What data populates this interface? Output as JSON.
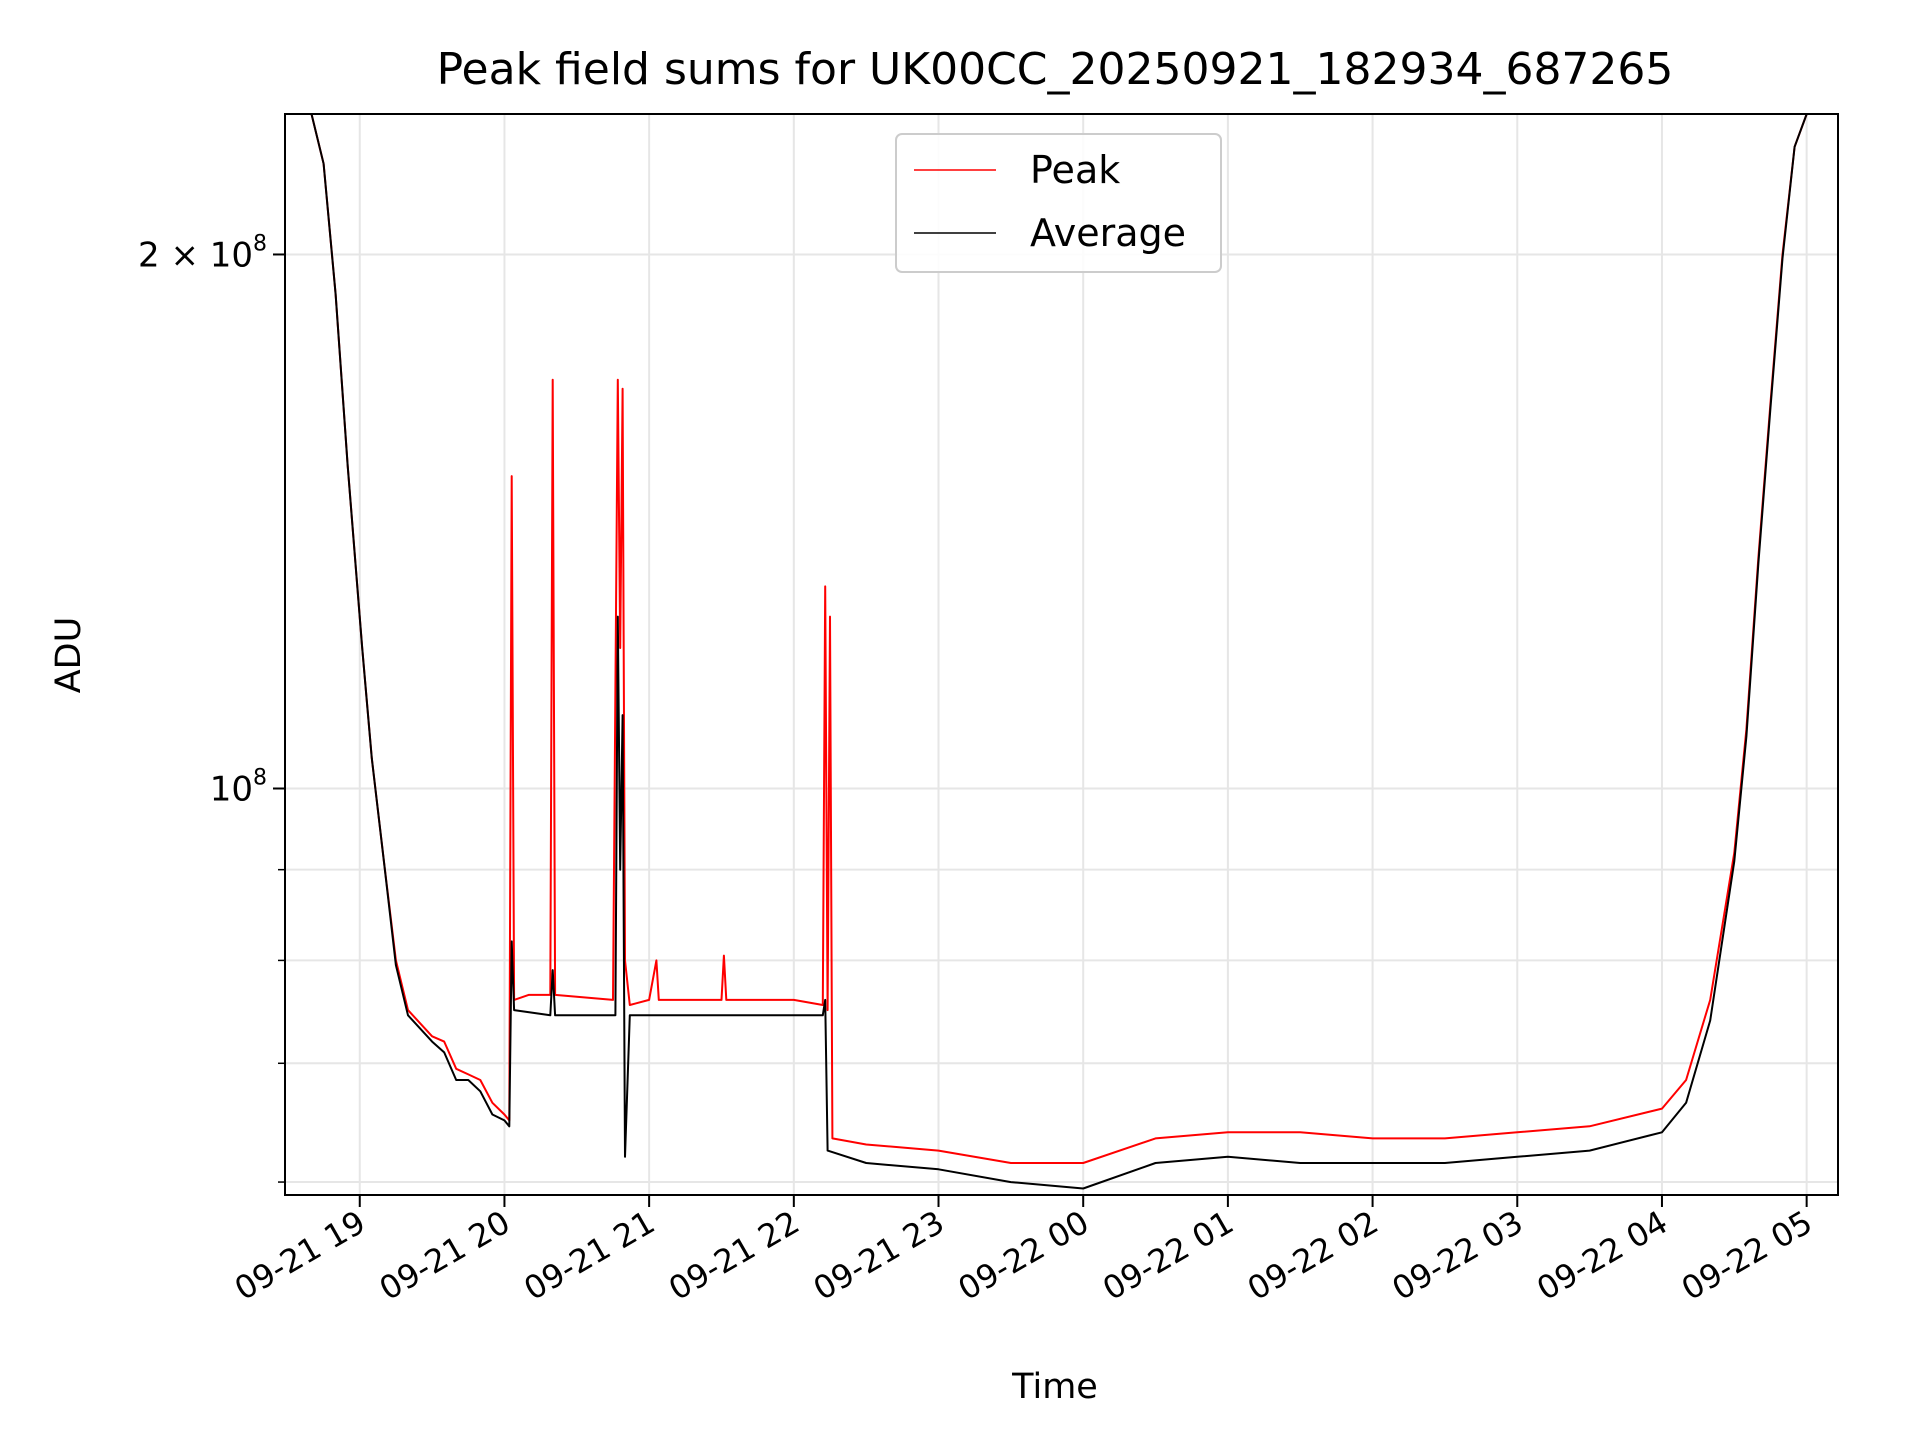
{
  "chart_data": {
    "type": "line",
    "title": "Peak field sums for UK00CC_20250921_182934_687265",
    "xlabel": "Time",
    "ylabel": "ADU",
    "y_scale": "log",
    "ylim": [
      59000000,
      240000000
    ],
    "xlim": [
      "2025-09-21T18:29",
      "2025-09-22T05:13"
    ],
    "grid": true,
    "legend_placement": "upper center",
    "x_ticks": [
      {
        "value": "2025-09-21T19:00",
        "label": "09-21 19"
      },
      {
        "value": "2025-09-21T20:00",
        "label": "09-21 20"
      },
      {
        "value": "2025-09-21T21:00",
        "label": "09-21 21"
      },
      {
        "value": "2025-09-21T22:00",
        "label": "09-21 22"
      },
      {
        "value": "2025-09-21T23:00",
        "label": "09-21 23"
      },
      {
        "value": "2025-09-22T00:00",
        "label": "09-22 00"
      },
      {
        "value": "2025-09-22T01:00",
        "label": "09-22 01"
      },
      {
        "value": "2025-09-22T02:00",
        "label": "09-22 02"
      },
      {
        "value": "2025-09-22T03:00",
        "label": "09-22 03"
      },
      {
        "value": "2025-09-22T04:00",
        "label": "09-22 04"
      },
      {
        "value": "2025-09-22T05:00",
        "label": "09-22 05"
      }
    ],
    "y_major_ticks": [
      {
        "value": 100000000,
        "label_base": "10",
        "label_exp": "8"
      },
      {
        "value": 200000000,
        "label_base": "2 × 10",
        "label_exp": "8"
      }
    ],
    "y_minor_ticks": [
      60000000,
      70000000,
      80000000,
      90000000
    ],
    "series": [
      {
        "name": "Peak",
        "color": "#ff0000",
        "points": [
          [
            "2025-09-21T18:29",
            240000000
          ],
          [
            "2025-09-21T18:40",
            240000000
          ],
          [
            "2025-09-21T18:45",
            225000000
          ],
          [
            "2025-09-21T18:50",
            190000000
          ],
          [
            "2025-09-21T18:55",
            152000000
          ],
          [
            "2025-09-21T19:01",
            120000000
          ],
          [
            "2025-09-21T19:05",
            104000000
          ],
          [
            "2025-09-21T19:10",
            91000000
          ],
          [
            "2025-09-21T19:15",
            80000000
          ],
          [
            "2025-09-21T19:20",
            75000000
          ],
          [
            "2025-09-21T19:30",
            72500000
          ],
          [
            "2025-09-21T19:35",
            72000000
          ],
          [
            "2025-09-21T19:40",
            69500000
          ],
          [
            "2025-09-21T19:45",
            69000000
          ],
          [
            "2025-09-21T19:50",
            68500000
          ],
          [
            "2025-09-21T19:55",
            66500000
          ],
          [
            "2025-09-21T20:00",
            65500000
          ],
          [
            "2025-09-21T20:02",
            65000000
          ],
          [
            "2025-09-21T20:03",
            150000000
          ],
          [
            "2025-09-21T20:04",
            76000000
          ],
          [
            "2025-09-21T20:10",
            76500000
          ],
          [
            "2025-09-21T20:19",
            76500000
          ],
          [
            "2025-09-21T20:20",
            170000000
          ],
          [
            "2025-09-21T20:21",
            76500000
          ],
          [
            "2025-09-21T20:45",
            76000000
          ],
          [
            "2025-09-21T20:47",
            170000000
          ],
          [
            "2025-09-21T20:48",
            120000000
          ],
          [
            "2025-09-21T20:49",
            168000000
          ],
          [
            "2025-09-21T20:50",
            80000000
          ],
          [
            "2025-09-21T20:52",
            75500000
          ],
          [
            "2025-09-21T21:00",
            76000000
          ],
          [
            "2025-09-21T21:03",
            80000000
          ],
          [
            "2025-09-21T21:04",
            76000000
          ],
          [
            "2025-09-21T21:30",
            76000000
          ],
          [
            "2025-09-21T21:31",
            80500000
          ],
          [
            "2025-09-21T21:32",
            76000000
          ],
          [
            "2025-09-21T22:00",
            76000000
          ],
          [
            "2025-09-21T22:12",
            75500000
          ],
          [
            "2025-09-21T22:13",
            130000000
          ],
          [
            "2025-09-21T22:14",
            75000000
          ],
          [
            "2025-09-21T22:15",
            125000000
          ],
          [
            "2025-09-21T22:16",
            63500000
          ],
          [
            "2025-09-21T22:30",
            63000000
          ],
          [
            "2025-09-21T23:00",
            62500000
          ],
          [
            "2025-09-21T23:30",
            61500000
          ],
          [
            "2025-09-22T00:00",
            61500000
          ],
          [
            "2025-09-22T00:30",
            63500000
          ],
          [
            "2025-09-22T01:00",
            64000000
          ],
          [
            "2025-09-22T01:30",
            64000000
          ],
          [
            "2025-09-22T02:00",
            63500000
          ],
          [
            "2025-09-22T02:30",
            63500000
          ],
          [
            "2025-09-22T03:00",
            64000000
          ],
          [
            "2025-09-22T03:30",
            64500000
          ],
          [
            "2025-09-22T04:00",
            66000000
          ],
          [
            "2025-09-22T04:10",
            68500000
          ],
          [
            "2025-09-22T04:20",
            76000000
          ],
          [
            "2025-09-22T04:30",
            92000000
          ],
          [
            "2025-09-22T04:35",
            108000000
          ],
          [
            "2025-09-22T04:40",
            135000000
          ],
          [
            "2025-09-22T04:45",
            165000000
          ],
          [
            "2025-09-22T04:50",
            200000000
          ],
          [
            "2025-09-22T04:55",
            230000000
          ],
          [
            "2025-09-22T05:00",
            240000000
          ],
          [
            "2025-09-22T05:13",
            240000000
          ]
        ]
      },
      {
        "name": "Average",
        "color": "#000000",
        "points": [
          [
            "2025-09-21T18:29",
            240000000
          ],
          [
            "2025-09-21T18:40",
            240000000
          ],
          [
            "2025-09-21T18:45",
            225000000
          ],
          [
            "2025-09-21T18:50",
            190000000
          ],
          [
            "2025-09-21T18:55",
            152000000
          ],
          [
            "2025-09-21T19:01",
            120000000
          ],
          [
            "2025-09-21T19:05",
            104000000
          ],
          [
            "2025-09-21T19:10",
            91000000
          ],
          [
            "2025-09-21T19:15",
            79500000
          ],
          [
            "2025-09-21T19:20",
            74500000
          ],
          [
            "2025-09-21T19:30",
            72000000
          ],
          [
            "2025-09-21T19:35",
            71000000
          ],
          [
            "2025-09-21T19:40",
            68500000
          ],
          [
            "2025-09-21T19:45",
            68500000
          ],
          [
            "2025-09-21T19:50",
            67500000
          ],
          [
            "2025-09-21T19:55",
            65500000
          ],
          [
            "2025-09-21T20:00",
            65000000
          ],
          [
            "2025-09-21T20:02",
            64500000
          ],
          [
            "2025-09-21T20:03",
            82000000
          ],
          [
            "2025-09-21T20:04",
            75000000
          ],
          [
            "2025-09-21T20:19",
            74500000
          ],
          [
            "2025-09-21T20:20",
            79000000
          ],
          [
            "2025-09-21T20:21",
            74500000
          ],
          [
            "2025-09-21T20:46",
            74500000
          ],
          [
            "2025-09-21T20:47",
            125000000
          ],
          [
            "2025-09-21T20:48",
            90000000
          ],
          [
            "2025-09-21T20:49",
            110000000
          ],
          [
            "2025-09-21T20:50",
            62000000
          ],
          [
            "2025-09-21T20:52",
            74500000
          ],
          [
            "2025-09-21T22:12",
            74500000
          ],
          [
            "2025-09-21T22:13",
            76000000
          ],
          [
            "2025-09-21T22:14",
            62500000
          ],
          [
            "2025-09-21T22:30",
            61500000
          ],
          [
            "2025-09-21T23:00",
            61000000
          ],
          [
            "2025-09-21T23:30",
            60000000
          ],
          [
            "2025-09-22T00:00",
            59500000
          ],
          [
            "2025-09-22T00:30",
            61500000
          ],
          [
            "2025-09-22T01:00",
            62000000
          ],
          [
            "2025-09-22T01:30",
            61500000
          ],
          [
            "2025-09-22T02:00",
            61500000
          ],
          [
            "2025-09-22T02:30",
            61500000
          ],
          [
            "2025-09-22T03:00",
            62000000
          ],
          [
            "2025-09-22T03:30",
            62500000
          ],
          [
            "2025-09-22T04:00",
            64000000
          ],
          [
            "2025-09-22T04:10",
            66500000
          ],
          [
            "2025-09-22T04:20",
            74000000
          ],
          [
            "2025-09-22T04:30",
            91000000
          ],
          [
            "2025-09-22T04:35",
            107000000
          ],
          [
            "2025-09-22T04:40",
            134000000
          ],
          [
            "2025-09-22T04:45",
            164000000
          ],
          [
            "2025-09-22T04:50",
            199000000
          ],
          [
            "2025-09-22T04:55",
            230000000
          ],
          [
            "2025-09-22T05:00",
            240000000
          ],
          [
            "2025-09-22T05:13",
            240000000
          ]
        ]
      }
    ]
  }
}
